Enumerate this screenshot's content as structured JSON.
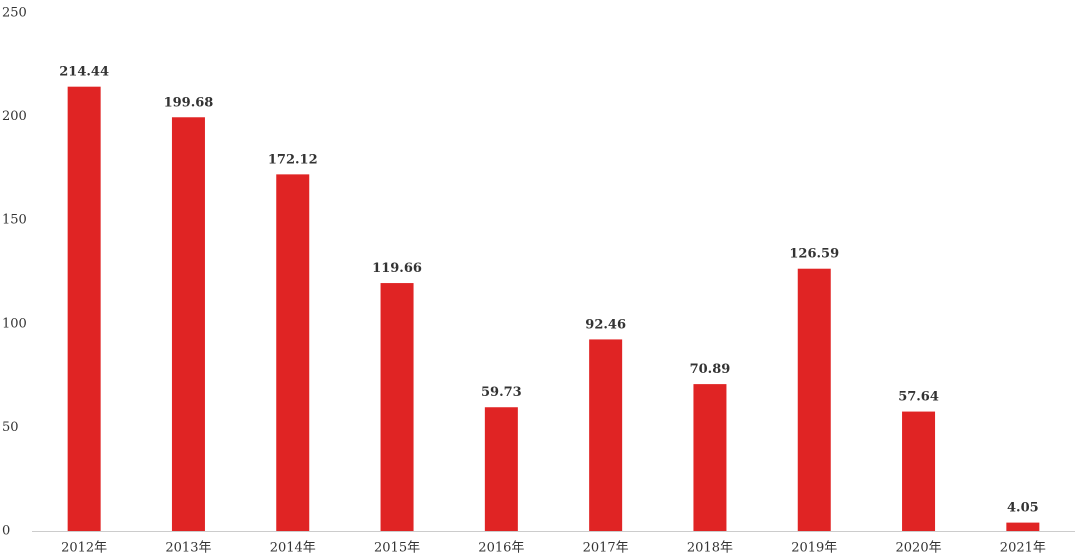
{
  "chart_data": {
    "type": "bar",
    "categories": [
      "2012年",
      "2013年",
      "2014年",
      "2015年",
      "2016年",
      "2017年",
      "2018年",
      "2019年",
      "2020年",
      "2021年"
    ],
    "values": [
      214.44,
      199.68,
      172.12,
      119.66,
      59.73,
      92.46,
      70.89,
      126.59,
      57.64,
      4.05
    ],
    "data_labels": [
      "214.44",
      "199.68",
      "172.12",
      "119.66",
      "59.73",
      "92.46",
      "70.89",
      "126.59",
      "57.64",
      "4.05"
    ],
    "title": "",
    "xlabel": "",
    "ylabel": "",
    "ylim": [
      0,
      250
    ],
    "yticks": [
      0,
      50,
      100,
      150,
      200,
      250
    ],
    "ytick_labels": [
      "0",
      "50",
      "100",
      "150",
      "200",
      "250"
    ],
    "grid": false,
    "legend": "none",
    "bar_color": "#e02424",
    "axis_color": "#cccccc",
    "text_color": "#333333"
  }
}
